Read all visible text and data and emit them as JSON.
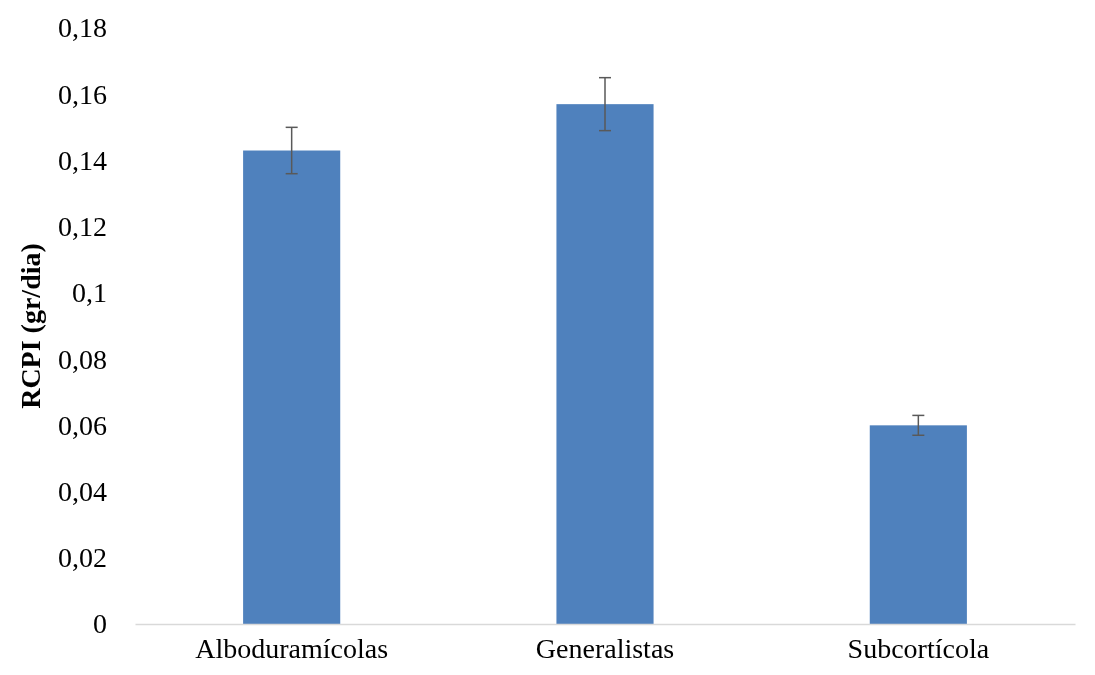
{
  "chart_data": {
    "type": "bar",
    "ylabel": "RCPI (gr/dia)",
    "categories": [
      "Alboduramícolas",
      "Generalistas",
      "Subcortícola"
    ],
    "values": [
      0.143,
      0.157,
      0.06
    ],
    "errors": [
      0.007,
      0.008,
      0.003
    ],
    "color": "#4f81bd",
    "ylim": [
      0,
      0.18
    ],
    "yticks": [
      0,
      {
        "value": 0.02,
        "label": "0,02"
      },
      {
        "value": 0.04,
        "label": "0,04"
      },
      {
        "value": 0.06,
        "label": "0,06"
      },
      {
        "value": 0.08,
        "label": "0,08"
      },
      {
        "value": 0.1,
        "label": "0,1"
      },
      {
        "value": 0.12,
        "label": "0,12"
      },
      {
        "value": 0.14,
        "label": "0,14"
      },
      {
        "value": 0.16,
        "label": "0,16"
      },
      {
        "value": 0.18,
        "label": "0,18"
      }
    ],
    "grid": false,
    "legend": false
  }
}
